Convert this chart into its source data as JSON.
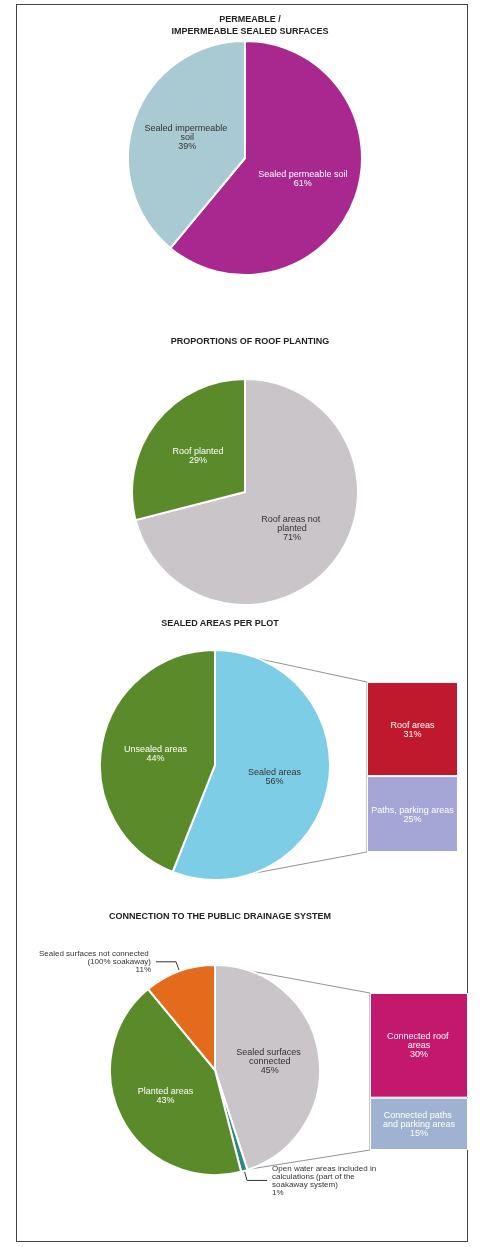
{
  "chart_data": [
    {
      "type": "pie",
      "title": "PERMEABLE /\nIMPERMEABLE SEALED SURFACES",
      "categories": [
        "Sealed permeable soil",
        "Sealed impermeable soil"
      ],
      "values": [
        61,
        39
      ],
      "value_labels": [
        "61%",
        "39%"
      ],
      "colors": [
        "#a8288f",
        "#a9c9d3"
      ]
    },
    {
      "type": "pie",
      "title": "PROPORTIONS OF ROOF PLANTING",
      "categories": [
        "Roof areas not planted",
        "Roof planted"
      ],
      "values": [
        71,
        29
      ],
      "value_labels": [
        "71%",
        "29%"
      ],
      "colors": [
        "#c9c5c9",
        "#5b8a2b"
      ]
    },
    {
      "type": "pie",
      "title": "SEALED AREAS PER PLOT",
      "categories": [
        "Sealed areas",
        "Unsealed areas"
      ],
      "values": [
        56,
        44
      ],
      "value_labels": [
        "56%",
        "44%"
      ],
      "colors": [
        "#7ecde6",
        "#5b8a2b"
      ]
    },
    {
      "type": "bar",
      "stacked": true,
      "categories": [
        null
      ],
      "ylim": [
        0,
        56
      ],
      "tick_labels": false,
      "series": [
        {
          "name": "Paths, parking areas",
          "color": "#a6a6d6",
          "values": [
            25
          ],
          "value_labels": [
            "25%"
          ]
        },
        {
          "name": "Roof areas",
          "color": "#c0182c",
          "values": [
            31
          ],
          "value_labels": [
            "31%"
          ]
        }
      ]
    },
    {
      "type": "pie",
      "title": "CONNECTION TO THE PUBLIC DRAINAGE SYSTEM",
      "categories": [
        "Sealed surfaces connected",
        "Open water areas included in calculations (part of the soakaway system)",
        "Planted areas",
        "Sealed surfaces not connected (100% soakaway)"
      ],
      "values": [
        45,
        1,
        43,
        11
      ],
      "value_labels": [
        "45%",
        "1%",
        "43%",
        "11%"
      ],
      "colors": [
        "#c9c5c9",
        "#2a8a80",
        "#5b8a2b",
        "#e46a1c"
      ]
    },
    {
      "type": "bar",
      "stacked": true,
      "categories": [
        null
      ],
      "ylim": [
        0,
        45
      ],
      "tick_labels": false,
      "series": [
        {
          "name": "Connected paths and parking areas",
          "color": "#9fb3d0",
          "values": [
            15
          ],
          "value_labels": [
            "15%"
          ]
        },
        {
          "name": "Connected roof areas",
          "color": "#c4186c",
          "values": [
            30
          ],
          "value_labels": [
            "30%"
          ]
        }
      ]
    }
  ]
}
